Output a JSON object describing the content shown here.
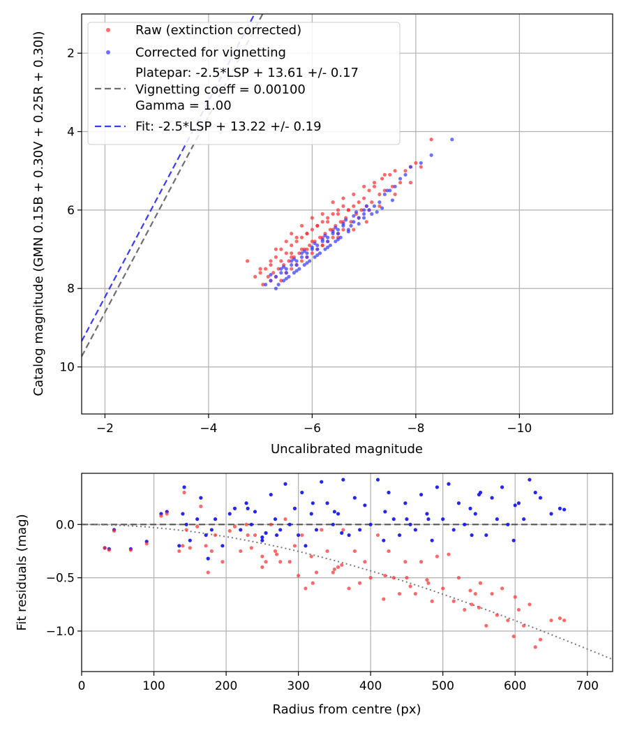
{
  "chart_data": [
    {
      "type": "scatter",
      "name": "calibration",
      "xlabel": "Uncalibrated magnitude",
      "ylabel": "Catalog magnitude (GMN 0.15B + 0.30V + 0.25R + 0.30I)",
      "xlim": [
        -1.55,
        -11.8
      ],
      "ylim": [
        11.2,
        1.0
      ],
      "x_inverted": true,
      "y_inverted": true,
      "xticks": [
        -2,
        -4,
        -6,
        -8,
        -10
      ],
      "xtick_labels": [
        "−2",
        "−4",
        "−6",
        "−8",
        "−10"
      ],
      "yticks": [
        2,
        4,
        6,
        8,
        10
      ],
      "ytick_labels": [
        "2",
        "4",
        "6",
        "8",
        "10"
      ],
      "grid": true,
      "legend_position": "upper-left",
      "legend": [
        {
          "label": "Raw (extinction corrected)",
          "marker": "dot",
          "color": "#ff3030"
        },
        {
          "label": "Corrected for vignetting",
          "marker": "dot",
          "color": "#3a3aff"
        },
        {
          "label": "Platepar: -2.5*LSP + 13.61 +/- 0.17",
          "marker": "dashed-line",
          "color": "#6e6e6e"
        },
        {
          "label": "Vignetting coeff = 0.00100",
          "marker": "none",
          "color": "#6e6e6e"
        },
        {
          "label": "Gamma = 1.00",
          "marker": "none",
          "color": "#6e6e6e"
        },
        {
          "label": "Fit: -2.5*LSP + 13.22 +/- 0.19",
          "marker": "dashed-line",
          "color": "#3a3aff"
        }
      ],
      "lines": [
        {
          "name": "platepar",
          "intercept": 13.61,
          "slope": -2.5,
          "equation": "-2.5*LSP + 13.61",
          "color": "#6e6e6e",
          "style": "dashed"
        },
        {
          "name": "fit",
          "intercept": 13.22,
          "slope": -2.5,
          "equation": "-2.5*LSP + 13.22",
          "color": "#3a3aff",
          "style": "dashed"
        }
      ],
      "series": [
        {
          "name": "Raw (extinction corrected)",
          "color": "#ff3030",
          "x": [
            -4.75,
            -4.9,
            -5.0,
            -5.05,
            -5.1,
            -5.15,
            -5.2,
            -5.2,
            -5.25,
            -5.3,
            -5.3,
            -5.35,
            -5.4,
            -5.4,
            -5.45,
            -5.5,
            -5.5,
            -5.55,
            -5.6,
            -5.6,
            -5.65,
            -5.7,
            -5.7,
            -5.75,
            -5.8,
            -5.8,
            -5.85,
            -5.9,
            -5.9,
            -5.95,
            -6.0,
            -6.0,
            -6.05,
            -6.1,
            -6.1,
            -6.15,
            -6.2,
            -6.2,
            -6.25,
            -6.3,
            -6.3,
            -6.35,
            -6.4,
            -6.4,
            -6.45,
            -6.5,
            -6.5,
            -6.55,
            -6.6,
            -6.6,
            -6.65,
            -6.7,
            -6.75,
            -6.8,
            -6.85,
            -6.9,
            -6.95,
            -7.0,
            -7.05,
            -7.1,
            -7.15,
            -7.2,
            -7.3,
            -7.35,
            -7.4,
            -7.5,
            -7.55,
            -7.6,
            -7.7,
            -7.8,
            -7.9,
            -8.0,
            -8.1,
            -8.3,
            -5.6,
            -5.8,
            -6.0,
            -6.2,
            -6.4,
            -6.6,
            -6.8,
            -7.0,
            -7.2,
            -7.4,
            -5.3,
            -5.5,
            -5.7,
            -5.9,
            -6.1,
            -6.3,
            -6.5,
            -6.7,
            -5.4,
            -5.6,
            -5.8,
            -6.0,
            -6.2,
            -6.4,
            -6.6,
            -6.9,
            -7.1,
            -7.3,
            -7.6,
            -7.9,
            -5.0,
            -5.2,
            -5.6,
            -5.9,
            -6.2,
            -6.5,
            -6.8,
            -7.05
          ],
          "y": [
            7.3,
            7.7,
            7.6,
            7.9,
            7.5,
            7.7,
            7.3,
            7.8,
            7.6,
            7.2,
            7.7,
            7.5,
            7.0,
            7.8,
            7.4,
            7.1,
            7.6,
            7.3,
            6.9,
            7.5,
            7.2,
            6.8,
            7.4,
            7.1,
            6.7,
            7.3,
            7.0,
            6.6,
            7.2,
            6.9,
            6.5,
            7.1,
            6.8,
            6.4,
            7.0,
            6.7,
            6.3,
            6.9,
            6.6,
            6.2,
            6.8,
            6.5,
            6.1,
            6.7,
            6.4,
            6.0,
            6.6,
            6.3,
            5.9,
            6.5,
            6.2,
            6.0,
            6.3,
            5.9,
            6.1,
            5.8,
            6.0,
            5.7,
            5.9,
            5.5,
            5.8,
            5.4,
            5.6,
            5.2,
            5.5,
            5.1,
            5.4,
            5.0,
            5.3,
            5.0,
            4.9,
            4.8,
            4.9,
            4.2,
            6.6,
            6.4,
            6.2,
            6.1,
            5.8,
            5.7,
            5.6,
            5.4,
            5.3,
            5.1,
            7.0,
            6.8,
            6.7,
            6.6,
            6.4,
            6.3,
            6.1,
            6.0,
            7.3,
            7.1,
            7.0,
            6.8,
            6.7,
            6.5,
            6.3,
            6.2,
            6.0,
            5.9,
            5.6,
            5.3,
            7.5,
            7.4,
            7.2,
            7.0,
            6.9,
            6.7,
            6.5,
            6.3
          ]
        },
        {
          "name": "Corrected for vignetting",
          "color": "#3a3aff",
          "x": [
            -5.1,
            -5.2,
            -5.3,
            -5.35,
            -5.4,
            -5.45,
            -5.5,
            -5.55,
            -5.6,
            -5.65,
            -5.7,
            -5.75,
            -5.8,
            -5.85,
            -5.9,
            -5.95,
            -6.0,
            -6.05,
            -6.1,
            -6.15,
            -6.2,
            -6.25,
            -6.3,
            -6.35,
            -6.4,
            -6.45,
            -6.5,
            -6.55,
            -6.6,
            -6.7,
            -6.8,
            -6.9,
            -7.0,
            -7.1,
            -7.2,
            -7.3,
            -7.4,
            -7.5,
            -7.6,
            -7.7,
            -7.8,
            -7.9,
            -8.1,
            -8.3,
            -8.7,
            -5.4,
            -5.6,
            -5.8,
            -6.0,
            -6.2,
            -6.4,
            -6.6,
            -6.8,
            -7.0,
            -5.3,
            -5.5,
            -5.7,
            -5.9,
            -6.1,
            -6.3,
            -6.5,
            -6.7,
            -6.9,
            -7.15,
            -7.35,
            -7.55,
            -5.5,
            -5.7,
            -5.9,
            -6.1,
            -6.3,
            -6.5,
            -6.75,
            -7.0,
            -7.25,
            -5.2,
            -5.45,
            -5.65,
            -5.85,
            -6.05,
            -6.25,
            -6.45,
            -6.65,
            -6.85,
            -7.05,
            -7.45
          ],
          "y": [
            7.9,
            7.8,
            7.7,
            7.9,
            7.6,
            7.8,
            7.5,
            7.7,
            7.4,
            7.6,
            7.3,
            7.5,
            7.2,
            7.4,
            7.1,
            7.3,
            7.0,
            7.2,
            6.9,
            7.1,
            6.8,
            7.0,
            6.7,
            6.9,
            6.6,
            6.8,
            6.5,
            6.7,
            6.4,
            6.5,
            6.3,
            6.2,
            6.1,
            6.0,
            5.9,
            5.8,
            5.6,
            5.5,
            5.4,
            5.2,
            5.1,
            4.9,
            4.8,
            4.6,
            4.2,
            7.5,
            7.3,
            7.1,
            6.95,
            6.75,
            6.55,
            6.35,
            6.15,
            6.0,
            8.0,
            7.75,
            7.55,
            7.35,
            7.15,
            6.95,
            6.75,
            6.55,
            6.35,
            6.1,
            5.95,
            5.75,
            7.6,
            7.4,
            7.2,
            7.0,
            6.8,
            6.6,
            6.4,
            6.2,
            6.05,
            7.65,
            7.45,
            7.25,
            7.05,
            6.85,
            6.65,
            6.45,
            6.25,
            6.05,
            5.9,
            5.5
          ]
        }
      ]
    },
    {
      "type": "scatter",
      "name": "residuals",
      "xlabel": "Radius from centre (px)",
      "ylabel": "Fit residuals (mag)",
      "xlim": [
        0,
        735
      ],
      "ylim": [
        -1.38,
        0.48
      ],
      "xticks": [
        0,
        100,
        200,
        300,
        400,
        500,
        600,
        700
      ],
      "xtick_labels": [
        "0",
        "100",
        "200",
        "300",
        "400",
        "500",
        "600",
        "700"
      ],
      "yticks": [
        0.0,
        -0.5,
        -1.0
      ],
      "ytick_labels": [
        "0.0",
        "−0.5",
        "−1.0"
      ],
      "grid": true,
      "reference_lines": [
        {
          "name": "zero",
          "y": 0.0,
          "style": "dashed",
          "color": "#555555"
        },
        {
          "name": "vignetting-model",
          "coeff": 0.001,
          "style": "dotted",
          "color": "#777777"
        }
      ],
      "series": [
        {
          "name": "Corrected for vignetting",
          "color": "#1a1aee",
          "x": [
            32,
            38,
            45,
            68,
            90,
            110,
            118,
            135,
            142,
            145,
            150,
            160,
            165,
            172,
            175,
            185,
            195,
            205,
            212,
            220,
            228,
            235,
            240,
            250,
            255,
            262,
            268,
            275,
            282,
            288,
            295,
            300,
            305,
            310,
            318,
            325,
            332,
            340,
            348,
            355,
            362,
            370,
            378,
            385,
            392,
            400,
            410,
            418,
            425,
            432,
            440,
            448,
            455,
            462,
            470,
            478,
            485,
            492,
            500,
            508,
            515,
            522,
            530,
            538,
            545,
            552,
            560,
            568,
            575,
            582,
            590,
            598,
            605,
            612,
            620,
            628,
            635,
            662,
            668,
            140,
            180,
            230,
            270,
            320,
            360,
            420,
            480,
            540,
            600,
            250,
            350,
            450,
            550,
            650
          ],
          "y": [
            -0.22,
            -0.23,
            -0.05,
            -0.23,
            -0.16,
            0.1,
            0.12,
            -0.2,
            0.35,
            0.0,
            -0.15,
            0.05,
            0.25,
            -0.1,
            -0.32,
            0.05,
            -0.2,
            0.1,
            0.15,
            -0.05,
            0.2,
            0.0,
            0.12,
            -0.15,
            -0.08,
            0.28,
            0.05,
            -0.05,
            0.38,
            0.0,
            0.15,
            -0.1,
            0.3,
            -0.2,
            0.1,
            -0.05,
            0.4,
            0.2,
            0.0,
            0.1,
            0.42,
            -0.1,
            0.25,
            -0.05,
            0.18,
            0.0,
            0.42,
            -0.15,
            0.3,
            0.05,
            -0.1,
            0.2,
            0.0,
            -0.05,
            0.28,
            0.1,
            -0.15,
            0.35,
            0.05,
            0.38,
            -0.05,
            0.2,
            0.0,
            0.15,
            0.1,
            0.3,
            -0.1,
            0.25,
            0.05,
            0.35,
            0.0,
            -0.15,
            0.2,
            0.05,
            0.42,
            0.3,
            0.25,
            0.15,
            0.14,
            0.1,
            -0.05,
            0.15,
            -0.1,
            0.2,
            -0.08,
            0.12,
            0.05,
            -0.1,
            0.18,
            -0.12,
            0.12,
            0.05,
            0.28,
            0.1
          ]
        },
        {
          "name": "Raw (extinction corrected)",
          "color": "#ff3030",
          "x": [
            32,
            38,
            45,
            68,
            90,
            110,
            118,
            135,
            142,
            145,
            150,
            160,
            165,
            172,
            175,
            185,
            195,
            205,
            212,
            220,
            228,
            235,
            240,
            250,
            255,
            262,
            268,
            275,
            282,
            288,
            295,
            300,
            305,
            310,
            318,
            325,
            332,
            340,
            348,
            355,
            362,
            370,
            378,
            385,
            392,
            400,
            410,
            418,
            425,
            432,
            440,
            448,
            455,
            462,
            470,
            478,
            485,
            492,
            500,
            508,
            515,
            522,
            530,
            538,
            545,
            552,
            560,
            568,
            575,
            582,
            590,
            598,
            605,
            612,
            620,
            628,
            635,
            662,
            668,
            140,
            180,
            230,
            270,
            320,
            360,
            420,
            480,
            540,
            600,
            250,
            350,
            450,
            550,
            650
          ],
          "y": [
            -0.22,
            -0.24,
            -0.06,
            -0.24,
            -0.18,
            0.08,
            0.1,
            -0.25,
            0.3,
            -0.05,
            -0.22,
            -0.02,
            0.17,
            -0.2,
            -0.45,
            -0.1,
            -0.35,
            -0.06,
            -0.02,
            -0.25,
            0.0,
            -0.22,
            -0.1,
            -0.4,
            -0.35,
            0.0,
            -0.25,
            -0.35,
            0.05,
            -0.35,
            -0.2,
            -0.48,
            -0.1,
            -0.6,
            -0.3,
            -0.45,
            -0.05,
            -0.25,
            -0.45,
            -0.4,
            -0.05,
            -0.6,
            -0.25,
            -0.55,
            -0.35,
            -0.5,
            -0.1,
            -0.7,
            -0.25,
            -0.5,
            -0.65,
            -0.35,
            -0.58,
            -0.65,
            -0.35,
            -0.52,
            -0.72,
            -0.3,
            -0.6,
            -0.28,
            -0.72,
            -0.5,
            -0.8,
            -0.62,
            -0.65,
            -0.55,
            -0.95,
            -0.65,
            -0.85,
            -0.6,
            -0.9,
            -1.05,
            -0.8,
            -0.95,
            -0.75,
            -1.15,
            -1.08,
            -0.88,
            -0.9,
            -0.2,
            -0.25,
            -0.1,
            -0.28,
            -0.55,
            -0.38,
            -0.48,
            -0.55,
            -0.75,
            -0.68,
            -0.3,
            -0.42,
            -0.5,
            -0.78,
            -0.9
          ]
        }
      ]
    }
  ]
}
